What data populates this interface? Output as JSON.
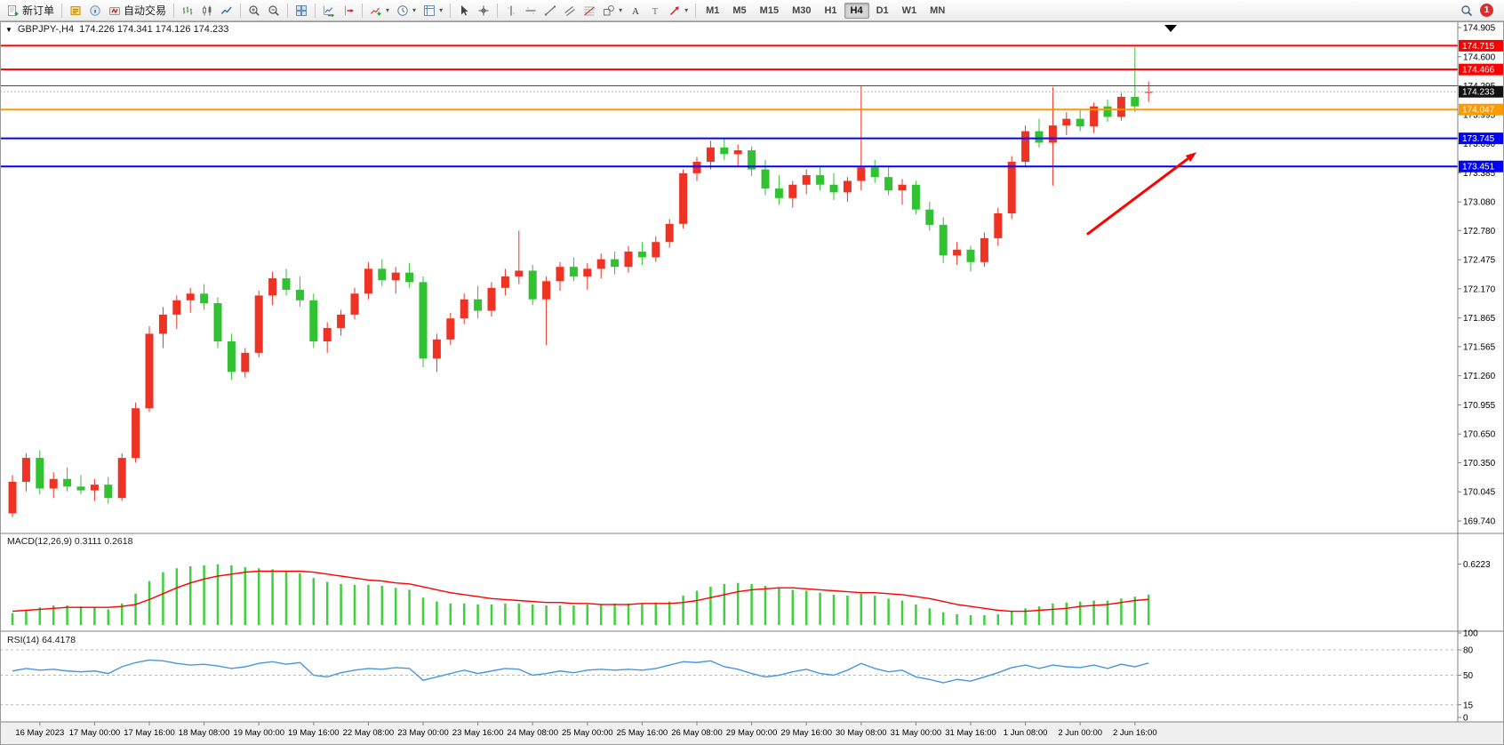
{
  "toolbar": {
    "new_order": {
      "label": "新订单"
    },
    "autotrading": {
      "label": "自动交易"
    },
    "timeframes": {
      "options": [
        "M1",
        "M5",
        "M15",
        "M30",
        "H1",
        "H4",
        "D1",
        "W1",
        "MN"
      ],
      "active": "H4"
    },
    "notification": {
      "count": "1"
    },
    "icon_names": [
      "new-order-icon",
      "metaeditor-icon",
      "community-icon",
      "autotrading-icon",
      "bar-chart-icon",
      "candlestick-chart-icon",
      "line-chart-icon",
      "zoom-in-icon",
      "zoom-out-icon",
      "tile-windows-icon",
      "autoscroll-icon",
      "chart-shift-icon",
      "indicators-icon",
      "periods-icon",
      "templates-icon",
      "cursor-icon",
      "crosshair-icon",
      "vertical-line-icon",
      "horizontal-line-icon",
      "trendline-icon",
      "channel-icon",
      "fibonacci-icon",
      "shapes-icon",
      "text-icon",
      "label-icon",
      "arrows-icon",
      "search-icon"
    ]
  },
  "chart": {
    "window_title": "GBPJPY-,H4",
    "ohlc_text": "174.226 174.341 174.126 174.233",
    "macd_label": "MACD(12,26,9) 0.3111 0.2618",
    "rsi_label": "RSI(14) 64.4178"
  },
  "chart_data": {
    "type": "candlestick",
    "symbol": "GBPJPY-",
    "period": "H4",
    "colors": {
      "bull": "#ee3224",
      "bear": "#30c230",
      "macd_hist": "#3fcf3f",
      "macd_signal": "#ff0000",
      "rsi": "#4696e0"
    },
    "price_axis": {
      "max": 174.905,
      "min": 169.74,
      "ticks": [
        "174.905",
        "174.600",
        "174.295",
        "173.995",
        "173.690",
        "173.385",
        "173.080",
        "172.780",
        "172.475",
        "172.170",
        "171.865",
        "171.565",
        "171.260",
        "170.955",
        "170.650",
        "170.350",
        "170.045",
        "169.740"
      ]
    },
    "hlines": [
      {
        "price": 174.715,
        "label": "174.715",
        "color": "#ff0000",
        "width": 2
      },
      {
        "price": 174.466,
        "label": "174.466",
        "color": "#ff0000",
        "width": 2
      },
      {
        "price": 174.295,
        "label": null,
        "color": "#4a4a4a",
        "width": 1
      },
      {
        "price": 174.047,
        "label": "174.047",
        "color": "#ff9900",
        "width": 2
      },
      {
        "price": 173.745,
        "label": "173.745",
        "color": "#0000ff",
        "width": 2
      },
      {
        "price": 173.451,
        "label": "173.451",
        "color": "#0000ff",
        "width": 2
      }
    ],
    "bid": {
      "price": 174.233,
      "label": "174.233",
      "tag_color": "#111111"
    },
    "candles": [
      [
        169.82,
        170.22,
        169.78,
        170.15
      ],
      [
        170.15,
        170.45,
        170.05,
        170.4
      ],
      [
        170.4,
        170.48,
        170.02,
        170.08
      ],
      [
        170.08,
        170.25,
        169.98,
        170.18
      ],
      [
        170.18,
        170.3,
        170.05,
        170.1
      ],
      [
        170.1,
        170.22,
        170.02,
        170.06
      ],
      [
        170.06,
        170.18,
        169.95,
        170.12
      ],
      [
        170.12,
        170.2,
        169.92,
        169.98
      ],
      [
        169.98,
        170.45,
        169.95,
        170.4
      ],
      [
        170.4,
        170.98,
        170.35,
        170.92
      ],
      [
        170.92,
        171.78,
        170.88,
        171.7
      ],
      [
        171.7,
        171.98,
        171.55,
        171.9
      ],
      [
        171.9,
        172.1,
        171.75,
        172.05
      ],
      [
        172.05,
        172.18,
        171.92,
        172.12
      ],
      [
        172.12,
        172.22,
        171.95,
        172.02
      ],
      [
        172.02,
        172.08,
        171.55,
        171.62
      ],
      [
        171.62,
        171.7,
        171.22,
        171.3
      ],
      [
        171.3,
        171.55,
        171.24,
        171.5
      ],
      [
        171.5,
        172.15,
        171.45,
        172.1
      ],
      [
        172.1,
        172.35,
        172.0,
        172.28
      ],
      [
        172.28,
        172.38,
        172.1,
        172.16
      ],
      [
        172.16,
        172.3,
        171.98,
        172.05
      ],
      [
        172.05,
        172.12,
        171.55,
        171.62
      ],
      [
        171.62,
        171.82,
        171.5,
        171.76
      ],
      [
        171.76,
        171.95,
        171.68,
        171.9
      ],
      [
        171.9,
        172.18,
        171.85,
        172.12
      ],
      [
        172.12,
        172.45,
        172.06,
        172.38
      ],
      [
        172.38,
        172.48,
        172.2,
        172.26
      ],
      [
        172.26,
        172.4,
        172.12,
        172.34
      ],
      [
        172.34,
        172.44,
        172.18,
        172.24
      ],
      [
        172.24,
        172.3,
        171.35,
        171.44
      ],
      [
        171.44,
        171.7,
        171.3,
        171.64
      ],
      [
        171.64,
        171.92,
        171.58,
        171.86
      ],
      [
        171.86,
        172.12,
        171.8,
        172.06
      ],
      [
        172.06,
        172.2,
        171.86,
        171.94
      ],
      [
        171.94,
        172.24,
        171.88,
        172.18
      ],
      [
        172.18,
        172.38,
        172.1,
        172.3
      ],
      [
        172.3,
        172.78,
        172.22,
        172.36
      ],
      [
        172.36,
        172.42,
        172.0,
        172.06
      ],
      [
        172.06,
        172.3,
        171.58,
        172.25
      ],
      [
        172.25,
        172.45,
        172.15,
        172.4
      ],
      [
        172.4,
        172.5,
        172.25,
        172.3
      ],
      [
        172.3,
        172.44,
        172.16,
        172.38
      ],
      [
        172.38,
        172.54,
        172.28,
        172.48
      ],
      [
        172.48,
        172.56,
        172.32,
        172.4
      ],
      [
        172.4,
        172.62,
        172.34,
        172.56
      ],
      [
        172.56,
        172.66,
        172.42,
        172.5
      ],
      [
        172.5,
        172.72,
        172.45,
        172.66
      ],
      [
        172.66,
        172.9,
        172.6,
        172.85
      ],
      [
        172.85,
        173.42,
        172.8,
        173.38
      ],
      [
        173.38,
        173.55,
        173.3,
        173.5
      ],
      [
        173.5,
        173.72,
        173.42,
        173.65
      ],
      [
        173.65,
        173.74,
        173.52,
        173.58
      ],
      [
        173.58,
        173.68,
        173.44,
        173.62
      ],
      [
        173.62,
        173.66,
        173.35,
        173.42
      ],
      [
        173.42,
        173.52,
        173.15,
        173.22
      ],
      [
        173.22,
        173.36,
        173.05,
        173.12
      ],
      [
        173.12,
        173.3,
        173.02,
        173.26
      ],
      [
        173.26,
        173.42,
        173.16,
        173.36
      ],
      [
        173.36,
        173.46,
        173.2,
        173.26
      ],
      [
        173.26,
        173.38,
        173.1,
        173.18
      ],
      [
        173.18,
        173.34,
        173.08,
        173.3
      ],
      [
        173.3,
        174.29,
        173.2,
        173.44
      ],
      [
        173.44,
        173.52,
        173.28,
        173.34
      ],
      [
        173.34,
        173.44,
        173.15,
        173.2
      ],
      [
        173.2,
        173.32,
        173.05,
        173.26
      ],
      [
        173.26,
        173.3,
        172.95,
        173.0
      ],
      [
        173.0,
        173.08,
        172.78,
        172.84
      ],
      [
        172.84,
        172.92,
        172.44,
        172.52
      ],
      [
        172.52,
        172.66,
        172.42,
        172.58
      ],
      [
        172.58,
        172.62,
        172.35,
        172.45
      ],
      [
        172.45,
        172.76,
        172.4,
        172.7
      ],
      [
        172.7,
        173.02,
        172.62,
        172.96
      ],
      [
        172.96,
        173.56,
        172.9,
        173.5
      ],
      [
        173.5,
        173.88,
        173.45,
        173.82
      ],
      [
        173.82,
        173.95,
        173.65,
        173.7
      ],
      [
        173.7,
        174.28,
        173.25,
        173.88
      ],
      [
        173.88,
        174.02,
        173.78,
        173.95
      ],
      [
        173.95,
        174.05,
        173.82,
        173.87
      ],
      [
        173.87,
        174.12,
        173.8,
        174.08
      ],
      [
        174.08,
        174.15,
        173.92,
        173.97
      ],
      [
        173.97,
        174.22,
        173.93,
        174.18
      ],
      [
        174.18,
        174.7,
        174.02,
        174.08
      ],
      [
        174.226,
        174.341,
        174.126,
        174.233
      ]
    ],
    "time_axis": [
      [
        2,
        "16 May 2023"
      ],
      [
        6,
        "17 May 00:00"
      ],
      [
        10,
        "17 May 16:00"
      ],
      [
        14,
        "18 May 08:00"
      ],
      [
        18,
        "19 May 00:00"
      ],
      [
        22,
        "19 May 16:00"
      ],
      [
        26,
        "22 May 08:00"
      ],
      [
        30,
        "23 May 00:00"
      ],
      [
        34,
        "23 May 16:00"
      ],
      [
        38,
        "24 May 08:00"
      ],
      [
        42,
        "25 May 00:00"
      ],
      [
        46,
        "25 May 16:00"
      ],
      [
        50,
        "26 May 08:00"
      ],
      [
        54,
        "29 May 00:00"
      ],
      [
        58,
        "29 May 16:00"
      ],
      [
        62,
        "30 May 08:00"
      ],
      [
        66,
        "31 May 00:00"
      ],
      [
        70,
        "31 May 16:00"
      ],
      [
        74,
        "1 Jun 08:00"
      ],
      [
        78,
        "2 Jun 00:00"
      ],
      [
        82,
        "2 Jun 16:00"
      ]
    ],
    "macd": {
      "label": "MACD(12,26,9) 0.3111 0.2618",
      "axis_label": "0.6223",
      "values": [
        0.12,
        0.15,
        0.18,
        0.2,
        0.2,
        0.19,
        0.18,
        0.16,
        0.22,
        0.32,
        0.45,
        0.54,
        0.58,
        0.6,
        0.61,
        0.62,
        0.61,
        0.59,
        0.58,
        0.57,
        0.55,
        0.53,
        0.48,
        0.44,
        0.42,
        0.41,
        0.41,
        0.4,
        0.38,
        0.36,
        0.28,
        0.24,
        0.22,
        0.22,
        0.21,
        0.21,
        0.22,
        0.22,
        0.21,
        0.2,
        0.2,
        0.2,
        0.21,
        0.21,
        0.22,
        0.22,
        0.22,
        0.23,
        0.24,
        0.3,
        0.35,
        0.39,
        0.42,
        0.43,
        0.42,
        0.4,
        0.38,
        0.36,
        0.35,
        0.33,
        0.31,
        0.3,
        0.32,
        0.3,
        0.27,
        0.25,
        0.21,
        0.17,
        0.13,
        0.11,
        0.1,
        0.1,
        0.11,
        0.14,
        0.17,
        0.19,
        0.22,
        0.23,
        0.24,
        0.25,
        0.25,
        0.27,
        0.29,
        0.3111
      ],
      "signal": [
        0.14,
        0.15,
        0.16,
        0.17,
        0.18,
        0.18,
        0.18,
        0.18,
        0.19,
        0.21,
        0.26,
        0.32,
        0.38,
        0.43,
        0.47,
        0.5,
        0.52,
        0.54,
        0.55,
        0.55,
        0.55,
        0.55,
        0.54,
        0.52,
        0.5,
        0.48,
        0.46,
        0.45,
        0.43,
        0.42,
        0.39,
        0.36,
        0.33,
        0.31,
        0.29,
        0.27,
        0.26,
        0.25,
        0.24,
        0.23,
        0.23,
        0.22,
        0.22,
        0.21,
        0.21,
        0.21,
        0.22,
        0.22,
        0.22,
        0.23,
        0.25,
        0.28,
        0.31,
        0.34,
        0.36,
        0.37,
        0.38,
        0.38,
        0.37,
        0.36,
        0.35,
        0.34,
        0.33,
        0.33,
        0.32,
        0.31,
        0.29,
        0.27,
        0.24,
        0.21,
        0.19,
        0.17,
        0.15,
        0.14,
        0.14,
        0.15,
        0.16,
        0.17,
        0.19,
        0.2,
        0.21,
        0.23,
        0.25,
        0.2618
      ]
    },
    "rsi": {
      "label": "RSI(14) 64.4178",
      "axis_labels": [
        "100",
        "80",
        "50",
        "15",
        "0"
      ],
      "levels": [
        80,
        50,
        15
      ],
      "values": [
        55,
        58,
        56,
        57,
        55,
        54,
        55,
        52,
        60,
        65,
        68,
        67,
        64,
        62,
        63,
        61,
        58,
        60,
        64,
        66,
        63,
        65,
        50,
        48,
        53,
        56,
        58,
        57,
        59,
        58,
        44,
        48,
        52,
        56,
        52,
        55,
        58,
        57,
        50,
        52,
        55,
        53,
        56,
        57,
        56,
        57,
        56,
        58,
        62,
        66,
        65,
        67,
        60,
        57,
        52,
        48,
        50,
        54,
        57,
        52,
        50,
        56,
        64,
        58,
        54,
        56,
        48,
        45,
        41,
        45,
        43,
        48,
        53,
        59,
        62,
        58,
        62,
        60,
        59,
        62,
        58,
        63,
        60,
        64.42
      ]
    },
    "annotations": [
      {
        "type": "arrow",
        "color": "#ff0000",
        "width": 3,
        "from": {
          "bar": 78.5,
          "price": 172.74
        },
        "to": {
          "bar": 86.5,
          "price": 173.6
        }
      }
    ]
  }
}
